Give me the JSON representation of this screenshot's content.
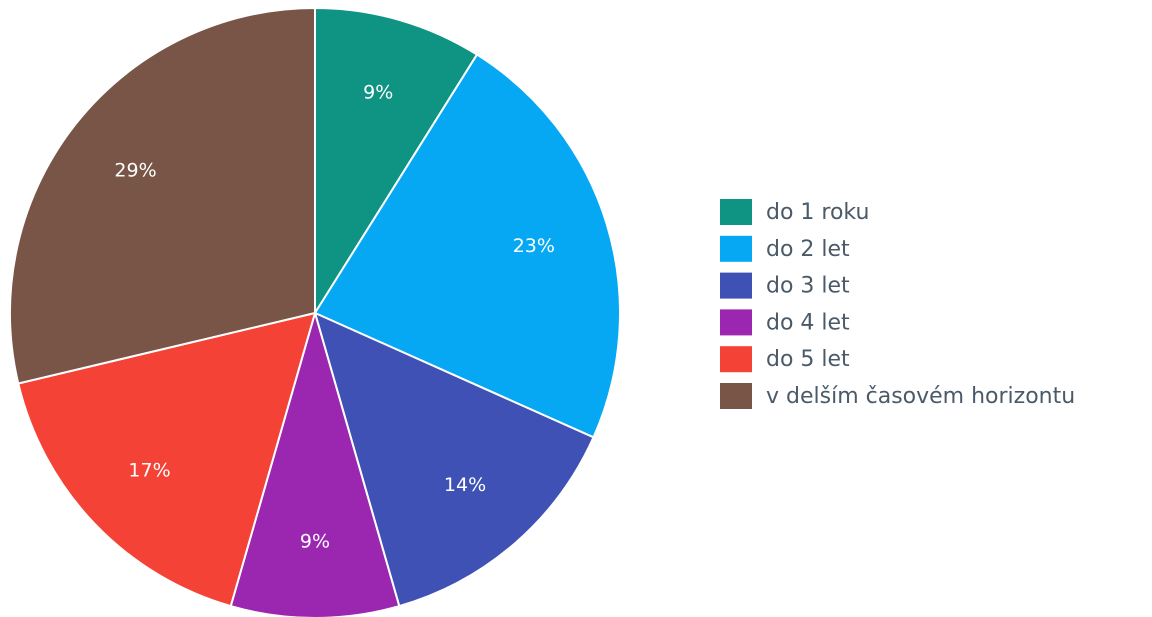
{
  "chart_data": {
    "type": "pie",
    "categories": [
      "do 1 roku",
      "do 2 let",
      "do 3 let",
      "do 4 let",
      "do 5 let",
      "v delším časovém horizontu"
    ],
    "values": [
      9,
      23,
      14,
      9,
      17,
      29
    ],
    "value_labels": [
      "9%",
      "23%",
      "14%",
      "9%",
      "17%",
      "29%"
    ],
    "colors": [
      "#0f9382",
      "#06a8f3",
      "#3f51b5",
      "#9b27b0",
      "#f44336",
      "#795548"
    ],
    "legend": "right"
  }
}
